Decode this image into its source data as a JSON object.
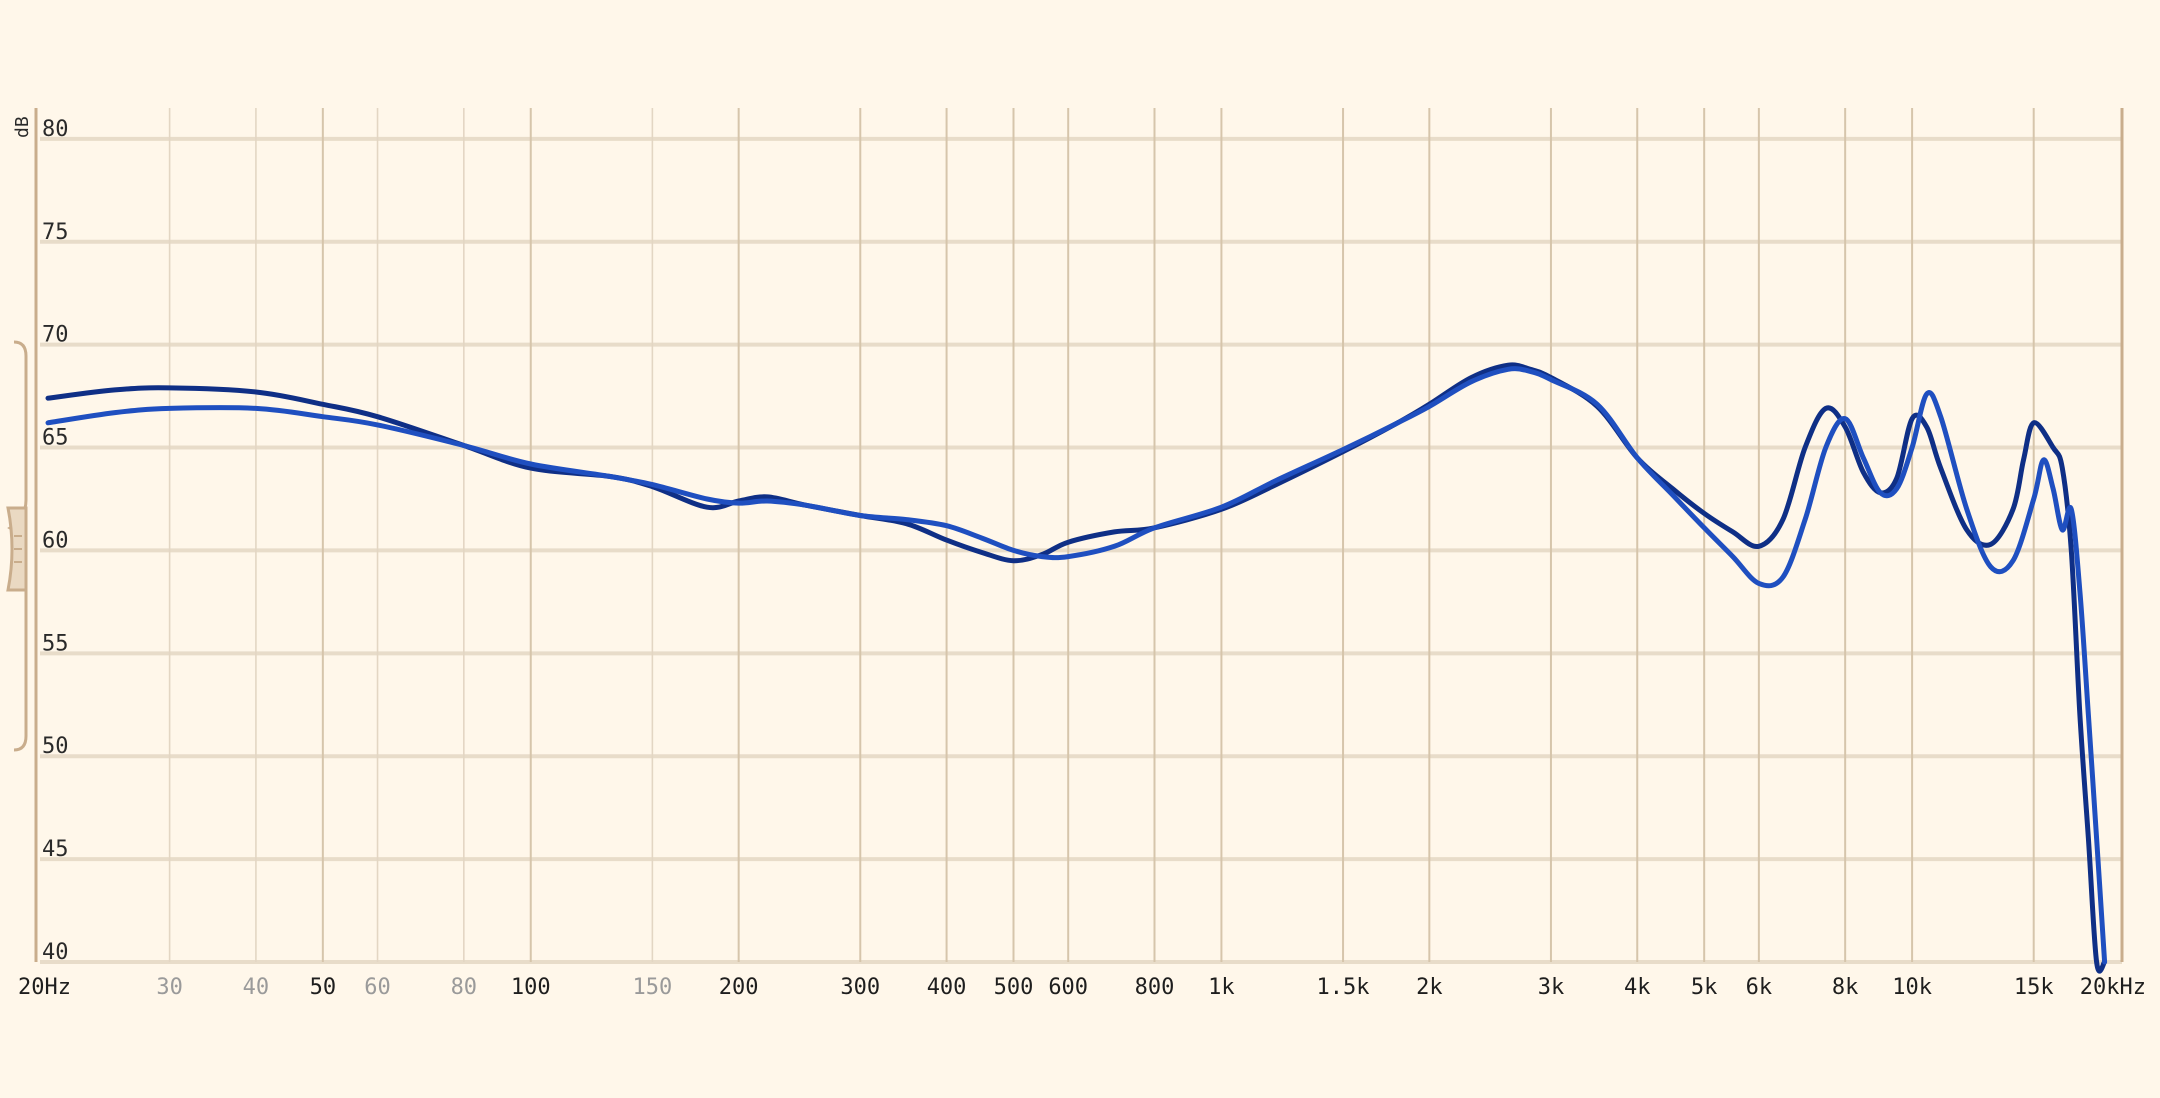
{
  "chart_data": {
    "type": "line",
    "title": "",
    "xlabel": "",
    "ylabel": "dB",
    "x_scale": "log",
    "xlim": [
      20,
      20000
    ],
    "ylim": [
      40,
      81.5
    ],
    "grid": true,
    "y_ticks": [
      {
        "value": 80,
        "label": "80"
      },
      {
        "value": 75,
        "label": "75"
      },
      {
        "value": 70,
        "label": "70"
      },
      {
        "value": 65,
        "label": "65"
      },
      {
        "value": 60,
        "label": "60"
      },
      {
        "value": 55,
        "label": "55"
      },
      {
        "value": 50,
        "label": "50"
      },
      {
        "value": 45,
        "label": "45"
      },
      {
        "value": 40,
        "label": "40"
      }
    ],
    "x_ticks": [
      {
        "value": 20,
        "label": "20Hz",
        "major": true
      },
      {
        "value": 30,
        "label": "30",
        "major": false
      },
      {
        "value": 40,
        "label": "40",
        "major": false
      },
      {
        "value": 50,
        "label": "50",
        "major": true
      },
      {
        "value": 60,
        "label": "60",
        "major": false
      },
      {
        "value": 80,
        "label": "80",
        "major": false
      },
      {
        "value": 100,
        "label": "100",
        "major": true
      },
      {
        "value": 150,
        "label": "150",
        "major": false
      },
      {
        "value": 200,
        "label": "200",
        "major": true
      },
      {
        "value": 300,
        "label": "300",
        "major": true
      },
      {
        "value": 400,
        "label": "400",
        "major": true
      },
      {
        "value": 500,
        "label": "500",
        "major": true
      },
      {
        "value": 600,
        "label": "600",
        "major": true
      },
      {
        "value": 800,
        "label": "800",
        "major": true
      },
      {
        "value": 1000,
        "label": "1k",
        "major": true
      },
      {
        "value": 1500,
        "label": "1.5k",
        "major": true
      },
      {
        "value": 2000,
        "label": "2k",
        "major": true
      },
      {
        "value": 3000,
        "label": "3k",
        "major": true
      },
      {
        "value": 4000,
        "label": "4k",
        "major": true
      },
      {
        "value": 5000,
        "label": "5k",
        "major": true
      },
      {
        "value": 6000,
        "label": "6k",
        "major": true
      },
      {
        "value": 8000,
        "label": "8k",
        "major": true
      },
      {
        "value": 10000,
        "label": "10k",
        "major": true
      },
      {
        "value": 15000,
        "label": "15k",
        "major": true
      },
      {
        "value": 20000,
        "label": "20kHz",
        "major": true
      }
    ],
    "series": [
      {
        "color": "#0f2f86",
        "x": [
          20,
          25,
          30,
          40,
          50,
          60,
          80,
          100,
          130,
          150,
          180,
          200,
          220,
          250,
          300,
          350,
          400,
          450,
          500,
          550,
          600,
          700,
          800,
          1000,
          1200,
          1500,
          1800,
          2000,
          2300,
          2600,
          2800,
          3000,
          3500,
          4000,
          4500,
          5000,
          5500,
          6000,
          6500,
          7000,
          7500,
          8000,
          8500,
          9000,
          9500,
          10000,
          10500,
          11000,
          12000,
          13000,
          14000,
          14500,
          15000,
          16000,
          16500,
          17000,
          17500,
          18000,
          18500,
          19000
        ],
        "y": [
          67.4,
          67.8,
          67.9,
          67.7,
          67.1,
          66.5,
          65.1,
          64.0,
          63.6,
          63.1,
          62.1,
          62.4,
          62.6,
          62.2,
          61.7,
          61.3,
          60.5,
          59.9,
          59.5,
          59.8,
          60.4,
          60.9,
          61.1,
          62.0,
          63.2,
          64.8,
          66.2,
          67.1,
          68.4,
          69.0,
          68.8,
          68.4,
          67.0,
          64.5,
          63.0,
          61.8,
          60.9,
          60.2,
          61.5,
          65.0,
          66.9,
          66.0,
          63.8,
          62.8,
          63.5,
          66.4,
          66.0,
          64.0,
          61.0,
          60.3,
          62.0,
          64.4,
          66.2,
          65.0,
          64.0,
          60.0,
          52.0,
          46.0,
          40.0,
          40.0
        ]
      },
      {
        "color": "#1f4fc0",
        "x": [
          20,
          25,
          30,
          40,
          50,
          60,
          80,
          100,
          130,
          150,
          180,
          200,
          220,
          250,
          300,
          350,
          400,
          450,
          500,
          550,
          600,
          700,
          800,
          1000,
          1200,
          1500,
          1800,
          2000,
          2300,
          2600,
          2800,
          3000,
          3500,
          4000,
          4500,
          5000,
          5500,
          6000,
          6500,
          7000,
          7500,
          8000,
          8500,
          9000,
          9500,
          10000,
          10500,
          11000,
          12000,
          13000,
          14000,
          15000,
          15500,
          16000,
          16500,
          17000,
          17500,
          18000,
          18500,
          19000
        ],
        "y": [
          66.2,
          66.7,
          66.9,
          66.9,
          66.5,
          66.1,
          65.1,
          64.2,
          63.6,
          63.2,
          62.5,
          62.3,
          62.4,
          62.2,
          61.7,
          61.5,
          61.2,
          60.6,
          60.0,
          59.7,
          59.7,
          60.2,
          61.1,
          62.1,
          63.4,
          64.9,
          66.2,
          67.0,
          68.2,
          68.8,
          68.7,
          68.3,
          67.1,
          64.5,
          62.7,
          61.1,
          59.7,
          58.4,
          58.7,
          61.5,
          65.0,
          66.4,
          64.5,
          62.8,
          63.0,
          65.0,
          67.6,
          66.5,
          62.0,
          59.2,
          59.5,
          62.5,
          64.4,
          63.0,
          61.0,
          62.0,
          58.0,
          52.0,
          46.0,
          40.0
        ]
      }
    ]
  }
}
